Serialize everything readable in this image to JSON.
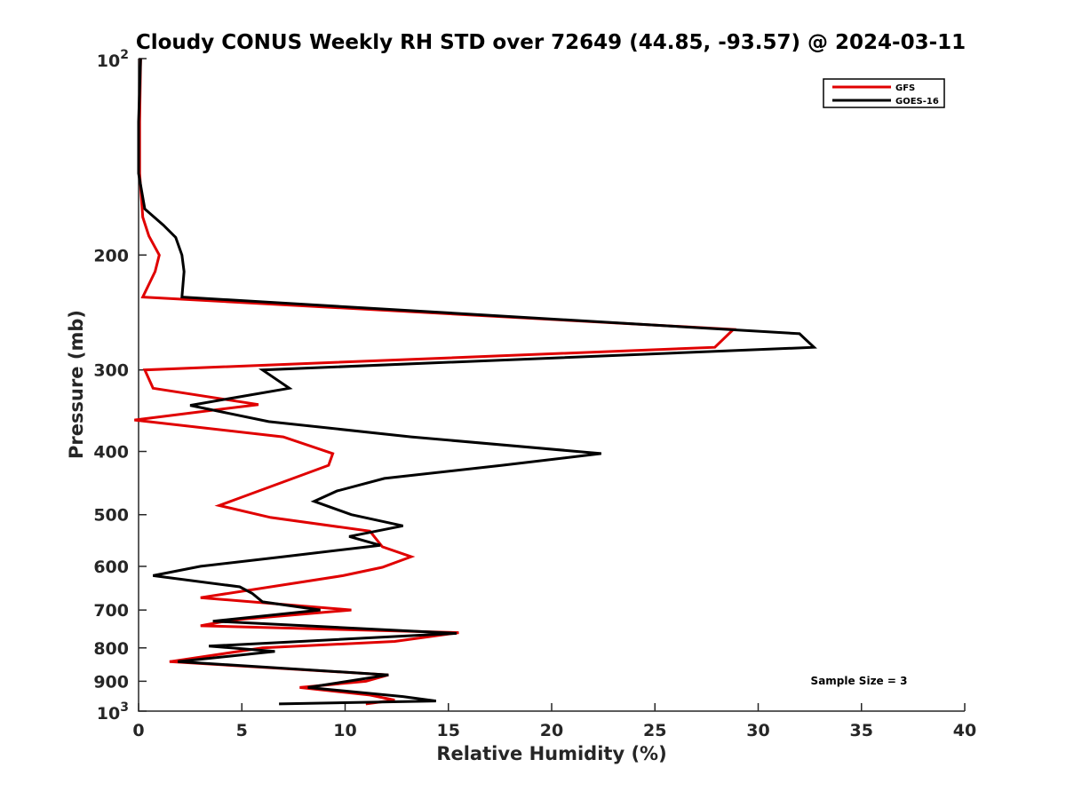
{
  "chart_data": {
    "type": "line",
    "title": "Cloudy CONUS Weekly RH STD over 72649 (44.85, -93.57) @ 2024-03-11",
    "xlabel": "Relative Humidity (%)",
    "ylabel": "Pressure (mb)",
    "xlim": [
      0,
      40
    ],
    "ylim": [
      100,
      1000
    ],
    "y_scale": "log",
    "y_reversed": true,
    "x_ticks": [
      0,
      5,
      10,
      15,
      20,
      25,
      30,
      35,
      40
    ],
    "y_ticks": [
      100,
      200,
      300,
      400,
      500,
      600,
      700,
      800,
      900,
      1000
    ],
    "y_tick_labels": [
      {
        "base": "10",
        "exp": "2"
      },
      "200",
      "300",
      "400",
      "500",
      "600",
      "700",
      "800",
      "900",
      {
        "base": "10",
        "exp": "3"
      }
    ],
    "grid": false,
    "legend_position": "top-right",
    "annotation": "Sample Size = 3",
    "series": [
      {
        "name": "GFS",
        "color": "#e00000",
        "points": [
          [
            0.1,
            100
          ],
          [
            0.05,
            125
          ],
          [
            0.05,
            150
          ],
          [
            0.2,
            175
          ],
          [
            0.5,
            187
          ],
          [
            1.0,
            200
          ],
          [
            0.8,
            212
          ],
          [
            0.2,
            232
          ],
          [
            28.8,
            260
          ],
          [
            27.9,
            277
          ],
          [
            0.3,
            300
          ],
          [
            0.7,
            320
          ],
          [
            5.8,
            339
          ],
          [
            -0.2,
            358
          ],
          [
            7.0,
            380
          ],
          [
            9.4,
            403
          ],
          [
            9.2,
            420
          ],
          [
            5.0,
            470
          ],
          [
            3.9,
            484
          ],
          [
            6.4,
            505
          ],
          [
            11.2,
            530
          ],
          [
            11.8,
            560
          ],
          [
            13.2,
            580
          ],
          [
            11.8,
            602
          ],
          [
            9.9,
            620
          ],
          [
            3.0,
            670
          ],
          [
            10.3,
            700
          ],
          [
            4.4,
            726
          ],
          [
            3.0,
            740
          ],
          [
            15.5,
            758
          ],
          [
            12.4,
            782
          ],
          [
            6.0,
            800
          ],
          [
            1.5,
            840
          ],
          [
            12.1,
            880
          ],
          [
            11.0,
            900
          ],
          [
            7.8,
            920
          ],
          [
            11.2,
            945
          ],
          [
            12.4,
            962
          ],
          [
            11.0,
            975
          ]
        ]
      },
      {
        "name": "GOES-16",
        "color": "#000000",
        "points": [
          [
            0.1,
            100
          ],
          [
            0.0,
            125
          ],
          [
            0.0,
            150
          ],
          [
            0.3,
            170
          ],
          [
            1.2,
            180
          ],
          [
            1.8,
            188
          ],
          [
            2.1,
            200
          ],
          [
            2.2,
            212
          ],
          [
            2.1,
            232
          ],
          [
            32.0,
            264
          ],
          [
            32.7,
            277
          ],
          [
            6.0,
            300
          ],
          [
            7.3,
            320
          ],
          [
            2.5,
            340
          ],
          [
            6.3,
            360
          ],
          [
            13.2,
            380
          ],
          [
            22.4,
            403
          ],
          [
            17.6,
            420
          ],
          [
            11.9,
            440
          ],
          [
            9.6,
            460
          ],
          [
            8.5,
            477
          ],
          [
            10.3,
            500
          ],
          [
            12.8,
            520
          ],
          [
            10.2,
            540
          ],
          [
            11.7,
            557
          ],
          [
            7.0,
            580
          ],
          [
            3.0,
            600
          ],
          [
            0.7,
            620
          ],
          [
            4.9,
            645
          ],
          [
            5.5,
            660
          ],
          [
            6.0,
            680
          ],
          [
            8.8,
            700
          ],
          [
            3.6,
            728
          ],
          [
            15.4,
            760
          ],
          [
            3.4,
            795
          ],
          [
            6.6,
            810
          ],
          [
            1.9,
            840
          ],
          [
            12.1,
            880
          ],
          [
            8.2,
            920
          ],
          [
            12.8,
            950
          ],
          [
            14.4,
            965
          ],
          [
            6.8,
            975
          ]
        ]
      }
    ]
  }
}
